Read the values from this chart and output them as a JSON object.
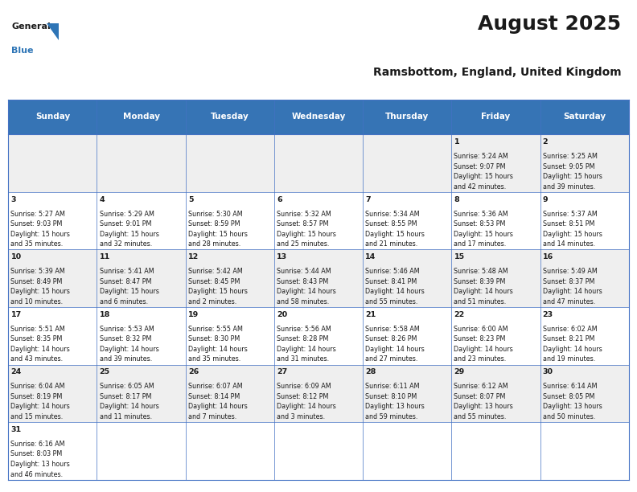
{
  "title": "August 2025",
  "subtitle": "Ramsbottom, England, United Kingdom",
  "header_bg": "#3674B5",
  "header_text_color": "#FFFFFF",
  "cell_bg_even": "#EFEFEF",
  "cell_bg_odd": "#FFFFFF",
  "grid_color": "#4472C4",
  "text_color": "#1a1a1a",
  "day_names": [
    "Sunday",
    "Monday",
    "Tuesday",
    "Wednesday",
    "Thursday",
    "Friday",
    "Saturday"
  ],
  "days": [
    {
      "day": 1,
      "col": 5,
      "row": 0,
      "sunrise": "5:24 AM",
      "sunset": "9:07 PM",
      "daylight_h": "15 hours",
      "daylight_m": "and 42 minutes."
    },
    {
      "day": 2,
      "col": 6,
      "row": 0,
      "sunrise": "5:25 AM",
      "sunset": "9:05 PM",
      "daylight_h": "15 hours",
      "daylight_m": "and 39 minutes."
    },
    {
      "day": 3,
      "col": 0,
      "row": 1,
      "sunrise": "5:27 AM",
      "sunset": "9:03 PM",
      "daylight_h": "15 hours",
      "daylight_m": "and 35 minutes."
    },
    {
      "day": 4,
      "col": 1,
      "row": 1,
      "sunrise": "5:29 AM",
      "sunset": "9:01 PM",
      "daylight_h": "15 hours",
      "daylight_m": "and 32 minutes."
    },
    {
      "day": 5,
      "col": 2,
      "row": 1,
      "sunrise": "5:30 AM",
      "sunset": "8:59 PM",
      "daylight_h": "15 hours",
      "daylight_m": "and 28 minutes."
    },
    {
      "day": 6,
      "col": 3,
      "row": 1,
      "sunrise": "5:32 AM",
      "sunset": "8:57 PM",
      "daylight_h": "15 hours",
      "daylight_m": "and 25 minutes."
    },
    {
      "day": 7,
      "col": 4,
      "row": 1,
      "sunrise": "5:34 AM",
      "sunset": "8:55 PM",
      "daylight_h": "15 hours",
      "daylight_m": "and 21 minutes."
    },
    {
      "day": 8,
      "col": 5,
      "row": 1,
      "sunrise": "5:36 AM",
      "sunset": "8:53 PM",
      "daylight_h": "15 hours",
      "daylight_m": "and 17 minutes."
    },
    {
      "day": 9,
      "col": 6,
      "row": 1,
      "sunrise": "5:37 AM",
      "sunset": "8:51 PM",
      "daylight_h": "15 hours",
      "daylight_m": "and 14 minutes."
    },
    {
      "day": 10,
      "col": 0,
      "row": 2,
      "sunrise": "5:39 AM",
      "sunset": "8:49 PM",
      "daylight_h": "15 hours",
      "daylight_m": "and 10 minutes."
    },
    {
      "day": 11,
      "col": 1,
      "row": 2,
      "sunrise": "5:41 AM",
      "sunset": "8:47 PM",
      "daylight_h": "15 hours",
      "daylight_m": "and 6 minutes."
    },
    {
      "day": 12,
      "col": 2,
      "row": 2,
      "sunrise": "5:42 AM",
      "sunset": "8:45 PM",
      "daylight_h": "15 hours",
      "daylight_m": "and 2 minutes."
    },
    {
      "day": 13,
      "col": 3,
      "row": 2,
      "sunrise": "5:44 AM",
      "sunset": "8:43 PM",
      "daylight_h": "14 hours",
      "daylight_m": "and 58 minutes."
    },
    {
      "day": 14,
      "col": 4,
      "row": 2,
      "sunrise": "5:46 AM",
      "sunset": "8:41 PM",
      "daylight_h": "14 hours",
      "daylight_m": "and 55 minutes."
    },
    {
      "day": 15,
      "col": 5,
      "row": 2,
      "sunrise": "5:48 AM",
      "sunset": "8:39 PM",
      "daylight_h": "14 hours",
      "daylight_m": "and 51 minutes."
    },
    {
      "day": 16,
      "col": 6,
      "row": 2,
      "sunrise": "5:49 AM",
      "sunset": "8:37 PM",
      "daylight_h": "14 hours",
      "daylight_m": "and 47 minutes."
    },
    {
      "day": 17,
      "col": 0,
      "row": 3,
      "sunrise": "5:51 AM",
      "sunset": "8:35 PM",
      "daylight_h": "14 hours",
      "daylight_m": "and 43 minutes."
    },
    {
      "day": 18,
      "col": 1,
      "row": 3,
      "sunrise": "5:53 AM",
      "sunset": "8:32 PM",
      "daylight_h": "14 hours",
      "daylight_m": "and 39 minutes."
    },
    {
      "day": 19,
      "col": 2,
      "row": 3,
      "sunrise": "5:55 AM",
      "sunset": "8:30 PM",
      "daylight_h": "14 hours",
      "daylight_m": "and 35 minutes."
    },
    {
      "day": 20,
      "col": 3,
      "row": 3,
      "sunrise": "5:56 AM",
      "sunset": "8:28 PM",
      "daylight_h": "14 hours",
      "daylight_m": "and 31 minutes."
    },
    {
      "day": 21,
      "col": 4,
      "row": 3,
      "sunrise": "5:58 AM",
      "sunset": "8:26 PM",
      "daylight_h": "14 hours",
      "daylight_m": "and 27 minutes."
    },
    {
      "day": 22,
      "col": 5,
      "row": 3,
      "sunrise": "6:00 AM",
      "sunset": "8:23 PM",
      "daylight_h": "14 hours",
      "daylight_m": "and 23 minutes."
    },
    {
      "day": 23,
      "col": 6,
      "row": 3,
      "sunrise": "6:02 AM",
      "sunset": "8:21 PM",
      "daylight_h": "14 hours",
      "daylight_m": "and 19 minutes."
    },
    {
      "day": 24,
      "col": 0,
      "row": 4,
      "sunrise": "6:04 AM",
      "sunset": "8:19 PM",
      "daylight_h": "14 hours",
      "daylight_m": "and 15 minutes."
    },
    {
      "day": 25,
      "col": 1,
      "row": 4,
      "sunrise": "6:05 AM",
      "sunset": "8:17 PM",
      "daylight_h": "14 hours",
      "daylight_m": "and 11 minutes."
    },
    {
      "day": 26,
      "col": 2,
      "row": 4,
      "sunrise": "6:07 AM",
      "sunset": "8:14 PM",
      "daylight_h": "14 hours",
      "daylight_m": "and 7 minutes."
    },
    {
      "day": 27,
      "col": 3,
      "row": 4,
      "sunrise": "6:09 AM",
      "sunset": "8:12 PM",
      "daylight_h": "14 hours",
      "daylight_m": "and 3 minutes."
    },
    {
      "day": 28,
      "col": 4,
      "row": 4,
      "sunrise": "6:11 AM",
      "sunset": "8:10 PM",
      "daylight_h": "13 hours",
      "daylight_m": "and 59 minutes."
    },
    {
      "day": 29,
      "col": 5,
      "row": 4,
      "sunrise": "6:12 AM",
      "sunset": "8:07 PM",
      "daylight_h": "13 hours",
      "daylight_m": "and 55 minutes."
    },
    {
      "day": 30,
      "col": 6,
      "row": 4,
      "sunrise": "6:14 AM",
      "sunset": "8:05 PM",
      "daylight_h": "13 hours",
      "daylight_m": "and 50 minutes."
    },
    {
      "day": 31,
      "col": 0,
      "row": 5,
      "sunrise": "6:16 AM",
      "sunset": "8:03 PM",
      "daylight_h": "13 hours",
      "daylight_m": "and 46 minutes."
    }
  ]
}
